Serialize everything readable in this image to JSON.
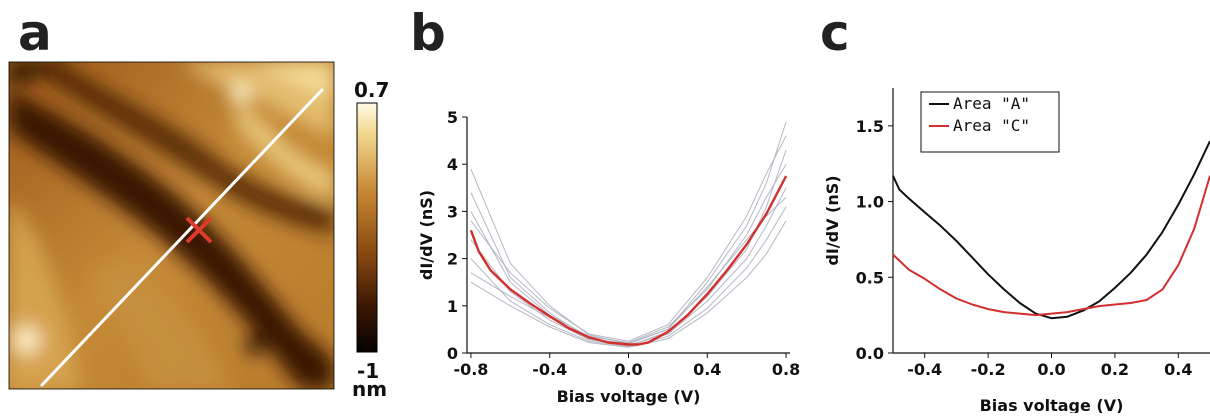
{
  "panels": {
    "a": {
      "letter": "a",
      "colorbar": {
        "max_label": "0.7",
        "min_label": "-1",
        "unit_label": "nm",
        "max": 0.7,
        "min": -1
      },
      "image_colors": {
        "dark": "#120600",
        "mid": "#8a4a0f",
        "light": "#f2d890"
      },
      "line_color": "#ffffff",
      "marker_color": "#e03a2c"
    },
    "b": {
      "letter": "b"
    },
    "c": {
      "letter": "c"
    }
  },
  "chart_data": [
    {
      "panel": "b",
      "type": "line",
      "xlabel": "Bias voltage (V)",
      "ylabel": "dI/dV (nS)",
      "xlim": [
        -0.82,
        0.82
      ],
      "ylim": [
        0,
        5
      ],
      "xticks": [
        "-0.8",
        "-0.4",
        "0.0",
        "0.4",
        "0.8"
      ],
      "yticks": [
        "0",
        "1",
        "2",
        "3",
        "4",
        "5"
      ],
      "mean_color": "#d32f2f",
      "spectra_color": "#a8adb8",
      "series": [
        {
          "role": "mean",
          "x": [
            -0.8,
            -0.76,
            -0.7,
            -0.6,
            -0.5,
            -0.4,
            -0.3,
            -0.2,
            -0.1,
            0.0,
            0.05,
            0.1,
            0.2,
            0.3,
            0.4,
            0.5,
            0.6,
            0.7,
            0.8
          ],
          "y": [
            2.6,
            2.15,
            1.75,
            1.35,
            1.05,
            0.78,
            0.52,
            0.33,
            0.22,
            0.18,
            0.18,
            0.22,
            0.45,
            0.8,
            1.25,
            1.75,
            2.3,
            2.95,
            3.75
          ]
        },
        {
          "role": "spectrum",
          "x": [
            -0.8,
            -0.6,
            -0.4,
            -0.2,
            0.0,
            0.2,
            0.4,
            0.6,
            0.7,
            0.8
          ],
          "y": [
            3.9,
            1.9,
            1.0,
            0.38,
            0.2,
            0.5,
            1.5,
            2.7,
            3.6,
            4.9
          ]
        },
        {
          "role": "spectrum",
          "x": [
            -0.8,
            -0.6,
            -0.4,
            -0.2,
            0.0,
            0.2,
            0.4,
            0.6,
            0.7,
            0.8
          ],
          "y": [
            3.4,
            1.6,
            0.85,
            0.3,
            0.15,
            0.45,
            1.2,
            2.2,
            3.1,
            4.3
          ]
        },
        {
          "role": "spectrum",
          "x": [
            -0.8,
            -0.6,
            -0.4,
            -0.2,
            0.0,
            0.2,
            0.4,
            0.6,
            0.7,
            0.8
          ],
          "y": [
            3.0,
            1.5,
            0.8,
            0.35,
            0.22,
            0.55,
            1.35,
            2.5,
            3.3,
            4.0
          ]
        },
        {
          "role": "spectrum",
          "x": [
            -0.8,
            -0.6,
            -0.4,
            -0.2,
            0.0,
            0.2,
            0.4,
            0.6,
            0.7,
            0.8
          ],
          "y": [
            2.4,
            1.3,
            0.7,
            0.28,
            0.17,
            0.4,
            1.1,
            2.0,
            2.7,
            3.5
          ]
        },
        {
          "role": "spectrum",
          "x": [
            -0.8,
            -0.6,
            -0.4,
            -0.2,
            0.0,
            0.2,
            0.4,
            0.6,
            0.7,
            0.8
          ],
          "y": [
            2.0,
            1.1,
            0.6,
            0.25,
            0.14,
            0.35,
            0.95,
            1.8,
            2.4,
            3.1
          ]
        },
        {
          "role": "spectrum",
          "x": [
            -0.8,
            -0.6,
            -0.4,
            -0.2,
            0.0,
            0.2,
            0.4,
            0.6,
            0.7,
            0.8
          ],
          "y": [
            1.7,
            1.2,
            0.75,
            0.3,
            0.2,
            0.5,
            1.4,
            2.4,
            2.9,
            3.3
          ]
        },
        {
          "role": "spectrum",
          "x": [
            -0.8,
            -0.6,
            -0.4,
            -0.2,
            0.0,
            0.2,
            0.4,
            0.6,
            0.7,
            0.8
          ],
          "y": [
            1.5,
            1.0,
            0.55,
            0.22,
            0.12,
            0.3,
            0.85,
            1.6,
            2.1,
            2.8
          ]
        },
        {
          "role": "spectrum",
          "x": [
            -0.8,
            -0.6,
            -0.4,
            -0.2,
            0.0,
            0.2,
            0.4,
            0.6,
            0.7,
            0.8
          ],
          "y": [
            2.8,
            1.7,
            0.95,
            0.4,
            0.25,
            0.6,
            1.6,
            2.9,
            3.8,
            4.6
          ]
        }
      ]
    },
    {
      "panel": "c",
      "type": "line",
      "xlabel": "Bias voltage (V)",
      "ylabel": "dI/dV (nS)",
      "xlim": [
        -0.5,
        0.5
      ],
      "ylim": [
        0,
        1.75
      ],
      "xticks": [
        "-0.4",
        "-0.2",
        "0.0",
        "0.2",
        "0.4"
      ],
      "yticks": [
        "0.0",
        "0.5",
        "1.0",
        "1.5"
      ],
      "legend": {
        "position": "top-left"
      },
      "series": [
        {
          "name": "Area \"A\"",
          "color": "#111111",
          "x": [
            -0.5,
            -0.48,
            -0.45,
            -0.4,
            -0.35,
            -0.3,
            -0.25,
            -0.2,
            -0.15,
            -0.1,
            -0.05,
            0.0,
            0.05,
            0.1,
            0.15,
            0.2,
            0.25,
            0.3,
            0.35,
            0.4,
            0.45,
            0.5
          ],
          "y": [
            1.17,
            1.08,
            1.02,
            0.93,
            0.84,
            0.74,
            0.63,
            0.52,
            0.42,
            0.33,
            0.26,
            0.23,
            0.24,
            0.28,
            0.34,
            0.43,
            0.53,
            0.65,
            0.8,
            0.98,
            1.18,
            1.4
          ]
        },
        {
          "name": "Area \"C\"",
          "color": "#d32f2f",
          "x": [
            -0.5,
            -0.45,
            -0.4,
            -0.35,
            -0.3,
            -0.25,
            -0.2,
            -0.15,
            -0.1,
            -0.05,
            0.0,
            0.05,
            0.1,
            0.15,
            0.2,
            0.25,
            0.3,
            0.35,
            0.4,
            0.45,
            0.5
          ],
          "y": [
            0.65,
            0.55,
            0.49,
            0.42,
            0.36,
            0.32,
            0.29,
            0.27,
            0.26,
            0.25,
            0.26,
            0.27,
            0.29,
            0.31,
            0.32,
            0.33,
            0.35,
            0.42,
            0.58,
            0.82,
            1.17
          ]
        }
      ]
    }
  ]
}
